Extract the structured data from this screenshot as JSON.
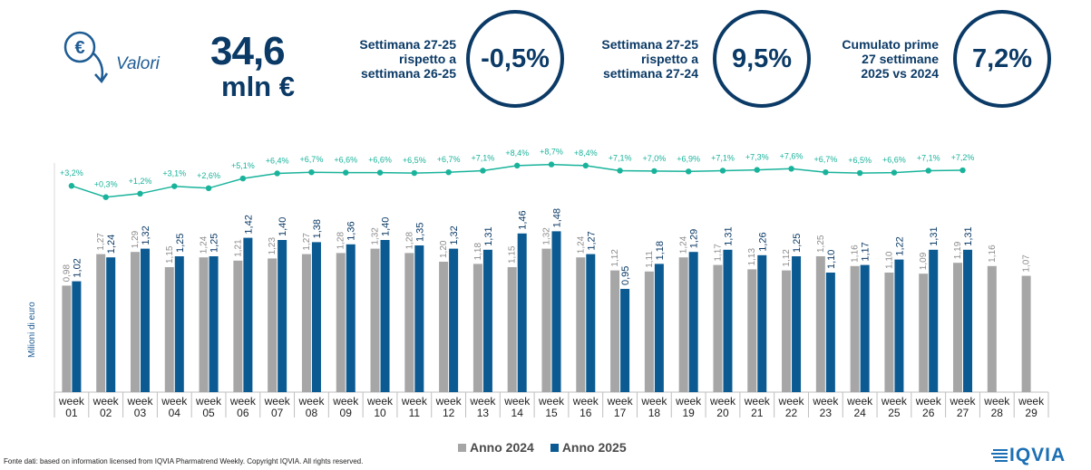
{
  "header": {
    "icon": "euro-down-arrow-icon",
    "label": "Valori",
    "value": "34,6",
    "unit": "mln €"
  },
  "kpis": [
    {
      "lines": [
        "Settimana 27-25",
        "rispetto a",
        "settimana 26-25"
      ],
      "value": "-0,5%"
    },
    {
      "lines": [
        "Settimana 27-25",
        "rispetto a",
        "settimana 27-24"
      ],
      "value": "9,5%"
    },
    {
      "lines": [
        "Cumulato prime",
        "27 settimane",
        "2025 vs 2024"
      ],
      "value": "7,2%"
    }
  ],
  "chart_data": {
    "type": "bar",
    "ylabel": "Milioni di euro",
    "categories": [
      "week\n01",
      "week\n02",
      "week\n03",
      "week\n04",
      "week\n05",
      "week\n06",
      "week\n07",
      "week\n08",
      "week\n09",
      "week\n10",
      "week\n11",
      "week\n12",
      "week\n13",
      "week\n14",
      "week\n15",
      "week\n16",
      "week\n17",
      "week\n18",
      "week\n19",
      "week\n20",
      "week\n21",
      "week\n22",
      "week\n23",
      "week\n24",
      "week\n25",
      "week\n26",
      "week\n27",
      "week\n28",
      "week\n29"
    ],
    "series": [
      {
        "name": "Anno 2024",
        "color": "#a6a6a6",
        "labels": [
          "0,98",
          "1,27",
          "1,29",
          "1,15",
          "1,24",
          "1,21",
          "1,23",
          "1,27",
          "1,28",
          "1,32",
          "1,28",
          "1,20",
          "1,18",
          "1,15",
          "1,32",
          "1,24",
          "1,12",
          "1,11",
          "1,24",
          "1,17",
          "1,13",
          "1,12",
          "1,25",
          "1,16",
          "1,10",
          "1,09",
          "1,19",
          "1,16",
          "1,07"
        ],
        "values": [
          0.98,
          1.27,
          1.29,
          1.15,
          1.24,
          1.21,
          1.23,
          1.27,
          1.28,
          1.32,
          1.28,
          1.2,
          1.18,
          1.15,
          1.32,
          1.24,
          1.12,
          1.11,
          1.24,
          1.17,
          1.13,
          1.12,
          1.25,
          1.16,
          1.1,
          1.09,
          1.19,
          1.16,
          1.07
        ]
      },
      {
        "name": "Anno 2025",
        "color": "#0b5a92",
        "labels": [
          "1,02",
          "1,24",
          "1,32",
          "1,25",
          "1,25",
          "1,42",
          "1,40",
          "1,38",
          "1,36",
          "1,40",
          "1,35",
          "1,32",
          "1,31",
          "1,46",
          "1,48",
          "1,27",
          "0,95",
          "1,18",
          "1,29",
          "1,31",
          "1,26",
          "1,25",
          "1,10",
          "1,17",
          "1,22",
          "1,31",
          "1,31",
          null,
          null
        ],
        "values": [
          1.02,
          1.24,
          1.32,
          1.25,
          1.25,
          1.42,
          1.4,
          1.38,
          1.36,
          1.4,
          1.35,
          1.32,
          1.31,
          1.46,
          1.48,
          1.27,
          0.95,
          1.18,
          1.29,
          1.31,
          1.26,
          1.25,
          1.1,
          1.17,
          1.22,
          1.31,
          1.31,
          null,
          null
        ]
      }
    ],
    "growth_line": {
      "color": "#19b39b",
      "labels": [
        "+3,2%",
        "+0,3%",
        "+1,2%",
        "+3,1%",
        "+2,6%",
        "+5,1%",
        "+6,4%",
        "+6,7%",
        "+6,6%",
        "+6,6%",
        "+6,5%",
        "+6,7%",
        "+7,1%",
        "+8,4%",
        "+8,7%",
        "+8,4%",
        "+7,1%",
        "+7,0%",
        "+6,9%",
        "+7,1%",
        "+7,3%",
        "+7,6%",
        "+6,7%",
        "+6,5%",
        "+6,6%",
        "+7,1%",
        "+7,2%"
      ],
      "values": [
        3.2,
        0.3,
        1.2,
        3.1,
        2.6,
        5.1,
        6.4,
        6.7,
        6.6,
        6.6,
        6.5,
        6.7,
        7.1,
        8.4,
        8.7,
        8.4,
        7.1,
        7.0,
        6.9,
        7.1,
        7.3,
        7.6,
        6.7,
        6.5,
        6.6,
        7.1,
        7.2
      ]
    },
    "legend": "bottom-center",
    "grid": false
  },
  "source": "Fonte dati: based on information licensed from IQVIA Pharmatrend Weekly. Copyright IQVIA. All rights reserved.",
  "logo": {
    "text": "IQVIA",
    "color": "#1b6fb4"
  }
}
